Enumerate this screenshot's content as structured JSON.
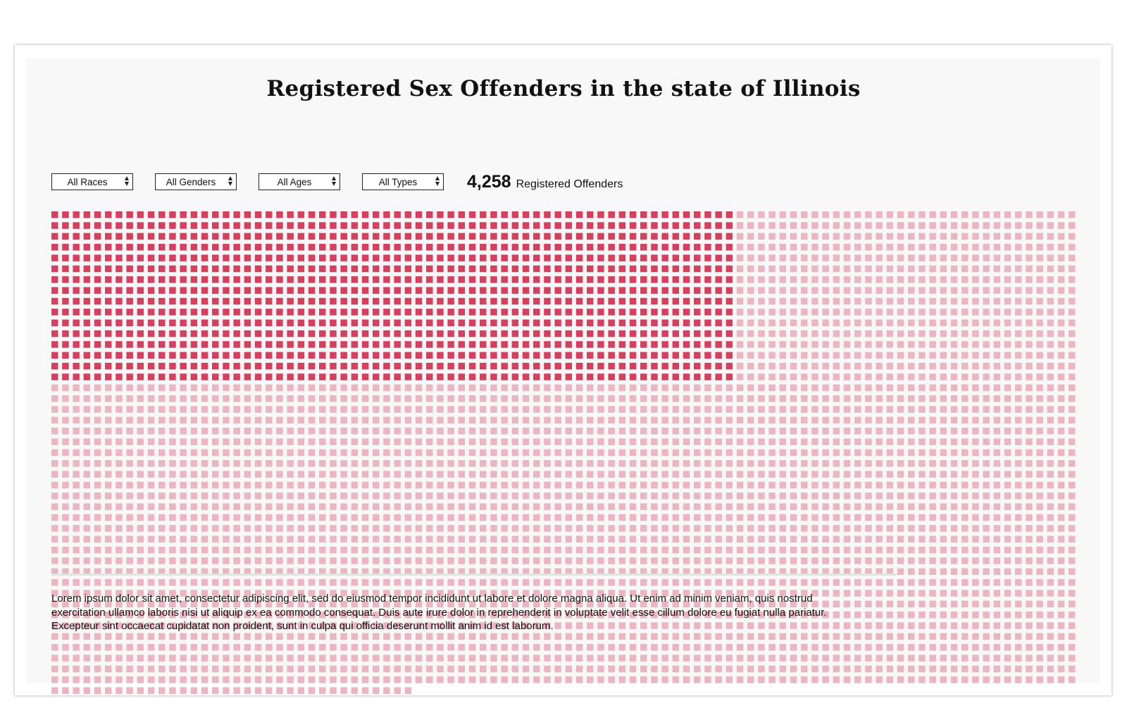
{
  "title": "Registered Sex Offenders in the state of Illinois",
  "filters": [
    {
      "name": "race",
      "selected": "All Races"
    },
    {
      "name": "gender",
      "selected": "All Genders"
    },
    {
      "name": "age",
      "selected": "All Ages"
    },
    {
      "name": "type",
      "selected": "All Types"
    }
  ],
  "summary": {
    "count": "4,258",
    "label": "Registered Offenders"
  },
  "chart_data": {
    "type": "waffle",
    "columns": 96,
    "total_units": 4258,
    "highlighted_units": 1024,
    "highlight_columns": 64,
    "highlight_rows": 16,
    "colors": {
      "highlight": "#d6405e",
      "base": "#ebb5c1"
    }
  },
  "description": "Lorem ipsum dolor sit amet, consectetur adipiscing elit, sed do eiusmod tempor incididunt ut labore et dolore magna aliqua. Ut enim ad minim veniam, quis nostrud exercitation ullamco laboris nisi ut aliquip ex ea commodo consequat. Duis aute irure dolor in reprehenderit in voluptate velit esse cillum dolore eu fugiat nulla pariatur. Excepteur sint occaecat cupidatat non proident, sunt in culpa qui officia deserunt mollit anim id est laborum."
}
